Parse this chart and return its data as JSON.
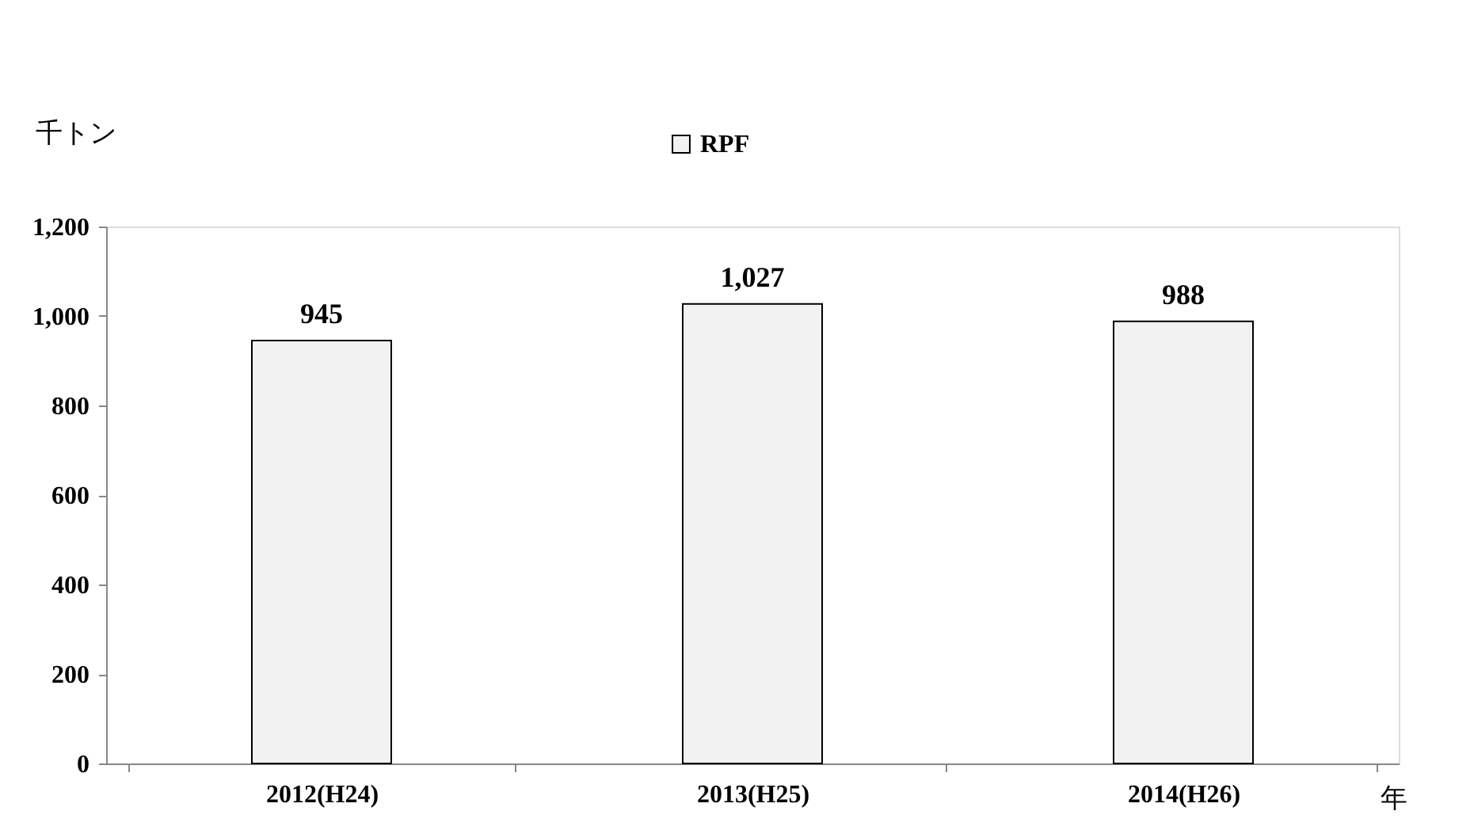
{
  "chart_data": {
    "type": "bar",
    "ylabel": "千トン",
    "xlabel": "年",
    "categories": [
      "2012(H24)",
      "2013(H25)",
      "2014(H26)"
    ],
    "series": [
      {
        "name": "RPF",
        "color": "#f2f2f2",
        "values": [
          945,
          1027,
          988
        ],
        "value_labels": [
          "945",
          "1,027",
          "988"
        ]
      }
    ],
    "ylim": [
      0,
      1200
    ],
    "yticks": [
      0,
      200,
      400,
      600,
      800,
      {
        "value": 1000,
        "label": "1,000"
      },
      {
        "value": 1200,
        "label": "1,200"
      }
    ],
    "legend": "top",
    "grid": false
  }
}
